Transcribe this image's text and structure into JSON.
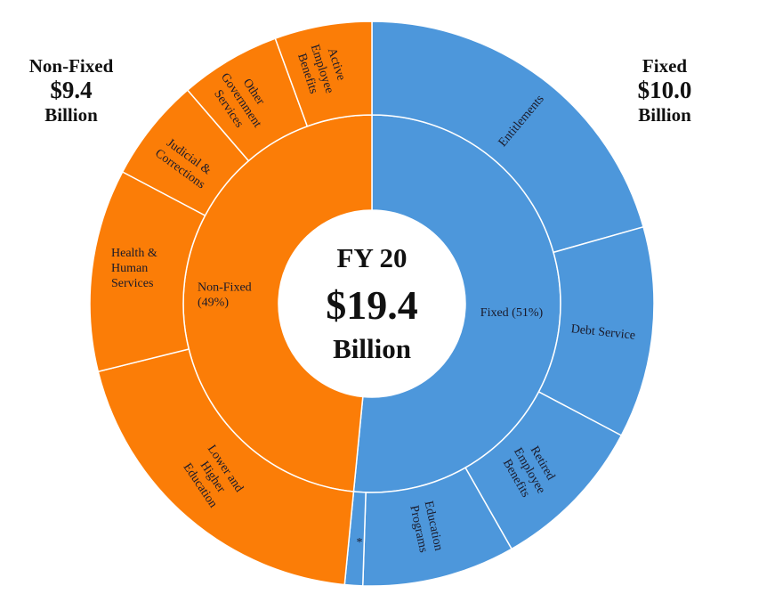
{
  "chart_data": {
    "type": "sunburst",
    "title_center": {
      "line1": "FY 20",
      "line2": "$19.4",
      "line3": "Billion"
    },
    "headers": {
      "left": {
        "line1": "Non-Fixed",
        "line2": "$9.4",
        "line3": "Billion"
      },
      "right": {
        "line1": "Fixed",
        "line2": "$10.0",
        "line3": "Billion"
      }
    },
    "unit": "billion USD (approximate, read from slice angles)",
    "inner_ring": [
      {
        "name": "Fixed (51%)",
        "share_percent": 51,
        "value": 10.0,
        "color": "#4D97DB"
      },
      {
        "name": "Non-Fixed (49%)",
        "share_percent": 49,
        "value": 9.4,
        "color": "#FB7D07"
      }
    ],
    "outer_ring": [
      {
        "name": "Entitlements",
        "parent": "Fixed",
        "value": 4.0
      },
      {
        "name": "Debt Service",
        "parent": "Fixed",
        "value": 2.35
      },
      {
        "name": "Retired Employee Benefits",
        "parent": "Fixed",
        "value": 1.75
      },
      {
        "name": "Education Programs",
        "parent": "Fixed",
        "value": 1.7
      },
      {
        "name": "*",
        "parent": "Fixed",
        "value": 0.2
      },
      {
        "name": "Lower and Higher Education",
        "parent": "Non-Fixed",
        "value": 3.8
      },
      {
        "name": "Health & Human Services",
        "parent": "Non-Fixed",
        "value": 2.25
      },
      {
        "name": "Judicial & Corrections",
        "parent": "Non-Fixed",
        "value": 1.15
      },
      {
        "name": "Other Government Services",
        "parent": "Non-Fixed",
        "value": 1.12
      },
      {
        "name": "Active Employee Benefits",
        "parent": "Non-Fixed",
        "value": 1.08
      }
    ],
    "colors": {
      "fixed": "#4D97DB",
      "non_fixed": "#FB7D07",
      "separator": "#ffffff"
    }
  }
}
